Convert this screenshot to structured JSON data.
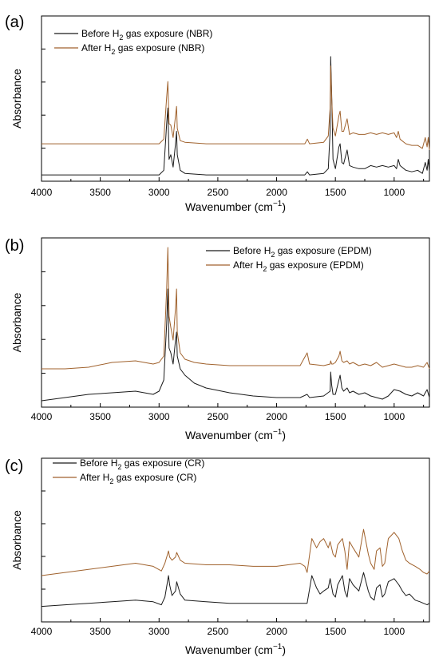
{
  "figure": {
    "axis_common": {
      "ylabel": "Absorbance",
      "xlabel_main": "Wavenumber (cm",
      "xlabel_sup": "−1",
      "xlabel_close": ")",
      "xticks": [
        "4000",
        "3500",
        "3000",
        "2500",
        "2000",
        "1500",
        "1000"
      ]
    },
    "panels": [
      {
        "label": "(a)",
        "legend": [
          {
            "pre": "Before H",
            "sub": "2",
            "post": " gas exposure (NBR)"
          },
          {
            "pre": "After H",
            "sub": "2",
            "post": " gas exposure (NBR)"
          }
        ]
      },
      {
        "label": "(b)",
        "legend": [
          {
            "pre": "Before H",
            "sub": "2",
            "post": " gas exposure (EPDM)"
          },
          {
            "pre": "After H",
            "sub": "2",
            "post": " gas exposure (EPDM)"
          }
        ]
      },
      {
        "label": "(c)",
        "legend": [
          {
            "pre": "Before H",
            "sub": "2",
            "post": " gas exposure (CR)"
          },
          {
            "pre": "After H",
            "sub": "2",
            "post": " gas exposure (CR)"
          }
        ]
      }
    ],
    "colors": {
      "before": "#1a1a1a",
      "after": "#a0622d",
      "axis": "#000000"
    }
  },
  "chart_data": [
    {
      "type": "line",
      "panel": "(a)",
      "xlabel": "Wavenumber (cm−1)",
      "ylabel": "Absorbance",
      "xlim": [
        4000,
        700
      ],
      "ylim": [
        0,
        1
      ],
      "x_reversed": true,
      "legend_position": "top-left",
      "series": [
        {
          "name": "Before H2 gas exposure (NBR)",
          "x": [
            4000,
            3500,
            3000,
            2960,
            2935,
            2925,
            2915,
            2900,
            2880,
            2860,
            2851,
            2845,
            2820,
            2780,
            2600,
            2000,
            1760,
            1738,
            1720,
            1600,
            1560,
            1545,
            1540,
            1532,
            1520,
            1500,
            1470,
            1460,
            1445,
            1430,
            1400,
            1380,
            1350,
            1300,
            1250,
            1200,
            1150,
            1100,
            1050,
            1000,
            980,
            965,
            950,
            900,
            850,
            800,
            760,
            735,
            720,
            710,
            700
          ],
          "y": [
            0.02,
            0.02,
            0.02,
            0.05,
            0.35,
            0.45,
            0.12,
            0.15,
            0.07,
            0.22,
            0.3,
            0.15,
            0.05,
            0.03,
            0.02,
            0.02,
            0.02,
            0.04,
            0.02,
            0.03,
            0.06,
            0.3,
            0.78,
            0.55,
            0.12,
            0.06,
            0.2,
            0.22,
            0.1,
            0.09,
            0.18,
            0.08,
            0.07,
            0.06,
            0.06,
            0.08,
            0.07,
            0.08,
            0.07,
            0.08,
            0.06,
            0.12,
            0.08,
            0.05,
            0.04,
            0.05,
            0.03,
            0.1,
            0.05,
            0.12,
            0.04
          ]
        },
        {
          "name": "After H2 gas exposure (NBR)",
          "x": [
            4000,
            3500,
            3000,
            2960,
            2935,
            2925,
            2915,
            2900,
            2880,
            2860,
            2851,
            2845,
            2820,
            2780,
            2600,
            2000,
            1760,
            1738,
            1720,
            1600,
            1560,
            1545,
            1540,
            1532,
            1520,
            1500,
            1470,
            1460,
            1445,
            1430,
            1400,
            1380,
            1350,
            1300,
            1250,
            1200,
            1150,
            1100,
            1050,
            1000,
            980,
            965,
            950,
            900,
            850,
            800,
            760,
            735,
            720,
            710,
            700
          ],
          "y": [
            0.22,
            0.22,
            0.22,
            0.25,
            0.52,
            0.62,
            0.35,
            0.34,
            0.26,
            0.4,
            0.46,
            0.32,
            0.24,
            0.23,
            0.22,
            0.22,
            0.22,
            0.25,
            0.22,
            0.23,
            0.27,
            0.45,
            0.72,
            0.52,
            0.32,
            0.27,
            0.4,
            0.43,
            0.3,
            0.3,
            0.38,
            0.28,
            0.29,
            0.28,
            0.28,
            0.29,
            0.28,
            0.29,
            0.28,
            0.29,
            0.26,
            0.3,
            0.25,
            0.22,
            0.21,
            0.21,
            0.19,
            0.26,
            0.2,
            0.26,
            0.18
          ]
        }
      ]
    },
    {
      "type": "line",
      "panel": "(b)",
      "xlabel": "Wavenumber (cm−1)",
      "ylabel": "Absorbance",
      "xlim": [
        4000,
        700
      ],
      "ylim": [
        0,
        1
      ],
      "x_reversed": true,
      "legend_position": "top-right",
      "series": [
        {
          "name": "Before H2 gas exposure (EPDM)",
          "x": [
            4000,
            3800,
            3600,
            3400,
            3200,
            3050,
            3000,
            2960,
            2935,
            2925,
            2915,
            2900,
            2880,
            2860,
            2851,
            2845,
            2820,
            2780,
            2700,
            2600,
            2400,
            2200,
            2000,
            1800,
            1740,
            1720,
            1600,
            1545,
            1540,
            1532,
            1520,
            1500,
            1470,
            1460,
            1445,
            1430,
            1400,
            1380,
            1350,
            1300,
            1250,
            1200,
            1150,
            1100,
            1050,
            1000,
            950,
            900,
            850,
            800,
            750,
            720,
            700
          ],
          "y": [
            0.02,
            0.04,
            0.06,
            0.07,
            0.08,
            0.06,
            0.08,
            0.15,
            0.5,
            0.72,
            0.35,
            0.32,
            0.25,
            0.4,
            0.45,
            0.3,
            0.22,
            0.18,
            0.13,
            0.1,
            0.07,
            0.05,
            0.04,
            0.04,
            0.06,
            0.04,
            0.05,
            0.08,
            0.2,
            0.12,
            0.06,
            0.06,
            0.15,
            0.18,
            0.1,
            0.08,
            0.1,
            0.07,
            0.08,
            0.06,
            0.07,
            0.05,
            0.04,
            0.03,
            0.05,
            0.09,
            0.08,
            0.06,
            0.05,
            0.07,
            0.05,
            0.09,
            0.04
          ]
        },
        {
          "name": "After H2 gas exposure (EPDM)",
          "x": [
            4000,
            3800,
            3600,
            3400,
            3200,
            3050,
            3000,
            2960,
            2935,
            2925,
            2915,
            2900,
            2880,
            2860,
            2851,
            2845,
            2820,
            2780,
            2700,
            2600,
            2400,
            2200,
            2000,
            1800,
            1740,
            1720,
            1600,
            1545,
            1540,
            1532,
            1520,
            1500,
            1470,
            1460,
            1445,
            1430,
            1400,
            1380,
            1350,
            1300,
            1250,
            1200,
            1150,
            1100,
            1050,
            1000,
            950,
            900,
            850,
            800,
            750,
            720,
            700
          ],
          "y": [
            0.22,
            0.22,
            0.23,
            0.26,
            0.27,
            0.25,
            0.26,
            0.3,
            0.72,
            0.98,
            0.55,
            0.48,
            0.4,
            0.6,
            0.72,
            0.45,
            0.32,
            0.28,
            0.26,
            0.25,
            0.24,
            0.24,
            0.24,
            0.24,
            0.32,
            0.25,
            0.24,
            0.25,
            0.27,
            0.25,
            0.25,
            0.26,
            0.3,
            0.33,
            0.27,
            0.26,
            0.27,
            0.25,
            0.26,
            0.24,
            0.25,
            0.24,
            0.26,
            0.23,
            0.24,
            0.25,
            0.24,
            0.23,
            0.23,
            0.24,
            0.23,
            0.26,
            0.22
          ]
        }
      ]
    },
    {
      "type": "line",
      "panel": "(c)",
      "xlabel": "Wavenumber (cm−1)",
      "ylabel": "Absorbance",
      "xlim": [
        4000,
        700
      ],
      "ylim": [
        0,
        1
      ],
      "x_reversed": true,
      "legend_position": "top-left",
      "series": [
        {
          "name": "Before H2 gas exposure (CR)",
          "x": [
            4000,
            3800,
            3600,
            3400,
            3200,
            3050,
            2980,
            2950,
            2920,
            2910,
            2890,
            2860,
            2850,
            2820,
            2780,
            2600,
            2400,
            2200,
            2000,
            1800,
            1760,
            1740,
            1700,
            1660,
            1630,
            1600,
            1560,
            1545,
            1520,
            1500,
            1480,
            1440,
            1420,
            1400,
            1380,
            1350,
            1300,
            1260,
            1220,
            1200,
            1170,
            1150,
            1120,
            1100,
            1080,
            1050,
            1000,
            960,
            930,
            900,
            870,
            820,
            780,
            750,
            720,
            700
          ],
          "y": [
            0.08,
            0.09,
            0.1,
            0.11,
            0.12,
            0.11,
            0.09,
            0.14,
            0.28,
            0.22,
            0.15,
            0.18,
            0.24,
            0.16,
            0.12,
            0.11,
            0.1,
            0.1,
            0.1,
            0.1,
            0.1,
            0.1,
            0.28,
            0.2,
            0.16,
            0.18,
            0.2,
            0.26,
            0.16,
            0.14,
            0.22,
            0.28,
            0.18,
            0.14,
            0.26,
            0.22,
            0.18,
            0.3,
            0.18,
            0.14,
            0.12,
            0.2,
            0.22,
            0.14,
            0.16,
            0.24,
            0.26,
            0.22,
            0.18,
            0.15,
            0.16,
            0.12,
            0.11,
            0.1,
            0.09,
            0.1
          ]
        },
        {
          "name": "After H2 gas exposure (CR)",
          "x": [
            4000,
            3800,
            3600,
            3400,
            3200,
            3050,
            2980,
            2950,
            2920,
            2910,
            2890,
            2860,
            2850,
            2820,
            2780,
            2600,
            2400,
            2200,
            2000,
            1800,
            1760,
            1740,
            1700,
            1660,
            1630,
            1600,
            1560,
            1545,
            1520,
            1500,
            1480,
            1440,
            1420,
            1400,
            1380,
            1350,
            1300,
            1260,
            1220,
            1200,
            1170,
            1150,
            1120,
            1100,
            1080,
            1050,
            1000,
            960,
            930,
            900,
            870,
            820,
            780,
            750,
            720,
            700
          ],
          "y": [
            0.28,
            0.3,
            0.32,
            0.34,
            0.36,
            0.34,
            0.31,
            0.36,
            0.44,
            0.4,
            0.38,
            0.4,
            0.43,
            0.38,
            0.36,
            0.35,
            0.35,
            0.34,
            0.34,
            0.36,
            0.34,
            0.3,
            0.52,
            0.46,
            0.5,
            0.52,
            0.46,
            0.5,
            0.42,
            0.4,
            0.48,
            0.52,
            0.44,
            0.32,
            0.5,
            0.46,
            0.4,
            0.58,
            0.42,
            0.36,
            0.32,
            0.44,
            0.46,
            0.34,
            0.36,
            0.52,
            0.56,
            0.52,
            0.44,
            0.38,
            0.36,
            0.34,
            0.32,
            0.3,
            0.29,
            0.31
          ]
        }
      ]
    }
  ]
}
